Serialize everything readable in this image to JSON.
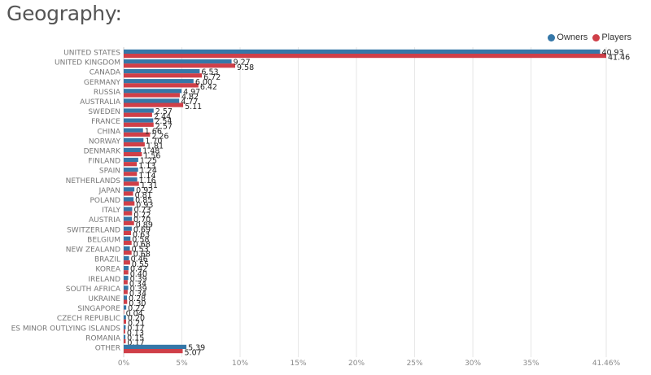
{
  "title": "Geography:",
  "colors": {
    "owners": "#3577a8",
    "players": "#cf3f48"
  },
  "chart_data": {
    "type": "bar",
    "orientation": "horizontal",
    "title": "",
    "legend_position": "top-right",
    "grid": true,
    "categories": [
      "UNITED STATES",
      "UNITED KINGDOM",
      "CANADA",
      "GERMANY",
      "RUSSIA",
      "AUSTRALIA",
      "SWEDEN",
      "FRANCE",
      "CHINA",
      "NORWAY",
      "DENMARK",
      "FINLAND",
      "SPAIN",
      "NETHERLANDS",
      "JAPAN",
      "POLAND",
      "ITALY",
      "AUSTRIA",
      "SWITZERLAND",
      "BELGIUM",
      "NEW ZEALAND",
      "BRAZIL",
      "KOREA",
      "IRELAND",
      "SOUTH AFRICA",
      "UKRAINE",
      "SINGAPORE",
      "CZECH REPUBLIC",
      "ES MINOR OUTLYING ISLANDS",
      "ROMANIA",
      "OTHER"
    ],
    "series": [
      {
        "name": "Owners",
        "values": [
          40.93,
          9.27,
          6.53,
          6.0,
          4.97,
          4.77,
          2.57,
          2.54,
          1.66,
          1.7,
          1.48,
          1.25,
          1.24,
          1.16,
          0.92,
          0.85,
          0.73,
          0.7,
          0.69,
          0.58,
          0.53,
          0.46,
          0.42,
          0.39,
          0.39,
          0.28,
          0.22,
          0.2,
          0.17,
          0.15,
          5.39
        ]
      },
      {
        "name": "Players",
        "values": [
          41.46,
          9.58,
          6.72,
          6.42,
          4.82,
          5.11,
          2.44,
          2.57,
          2.26,
          1.81,
          1.56,
          1.13,
          1.14,
          1.31,
          0.81,
          0.93,
          0.72,
          0.89,
          0.63,
          0.68,
          0.68,
          0.55,
          0.4,
          0.34,
          0.34,
          0.3,
          0.04,
          0.21,
          0.13,
          0.17,
          5.07
        ]
      }
    ],
    "x_ticks": [
      "0%",
      "5%",
      "10%",
      "15%",
      "20%",
      "25%",
      "30%",
      "35%",
      "41.46%"
    ],
    "xlim": [
      0,
      41.46
    ]
  }
}
